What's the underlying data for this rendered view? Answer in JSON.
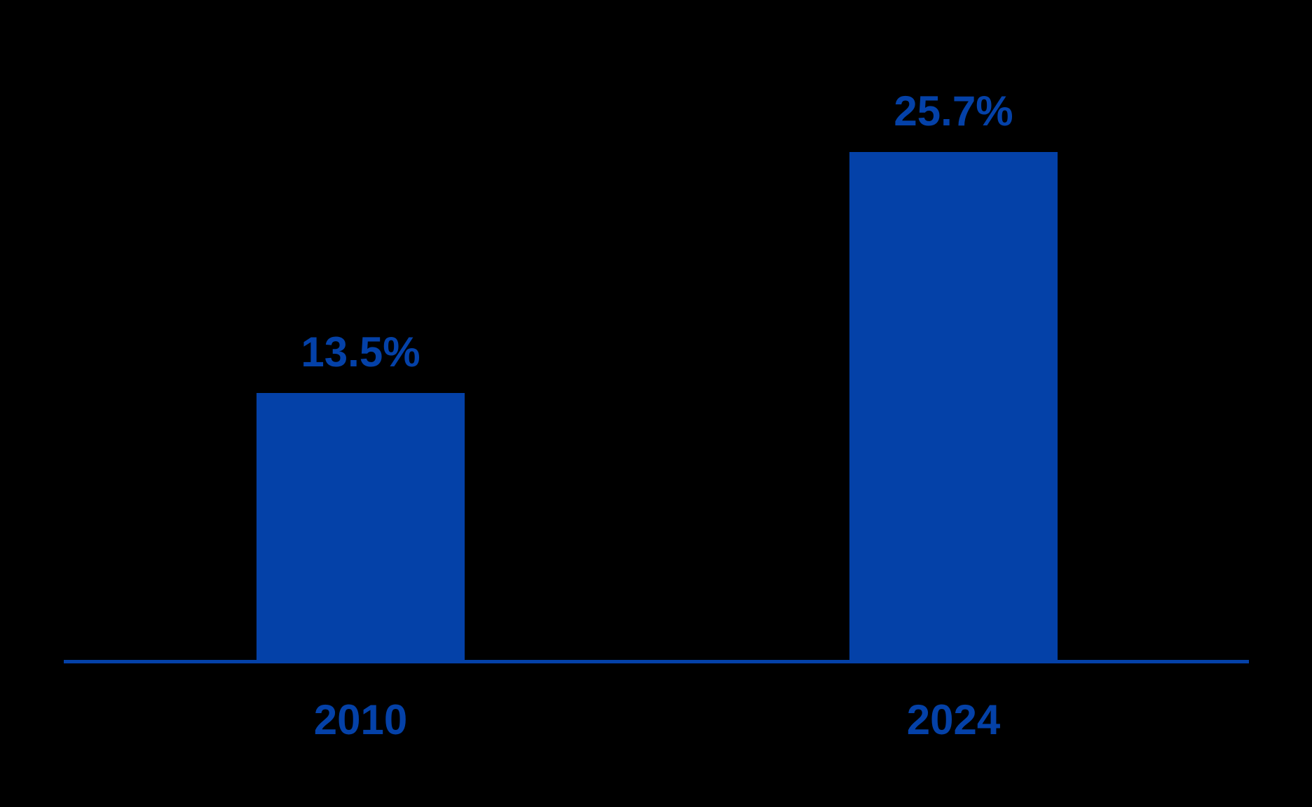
{
  "chart_data": {
    "type": "bar",
    "categories": [
      "2010",
      "2024"
    ],
    "values": [
      13.5,
      25.7
    ],
    "value_labels": [
      "13.5%",
      "25.7%"
    ],
    "title": "",
    "xlabel": "",
    "ylabel": "",
    "ylim": [
      0,
      30
    ],
    "grid": false,
    "legend": false,
    "colors": {
      "bar": "#0441a8",
      "data_label": "#0441a8",
      "axis_line": "#0441a8",
      "category_label": "#0441a8",
      "background": "#000000"
    }
  }
}
